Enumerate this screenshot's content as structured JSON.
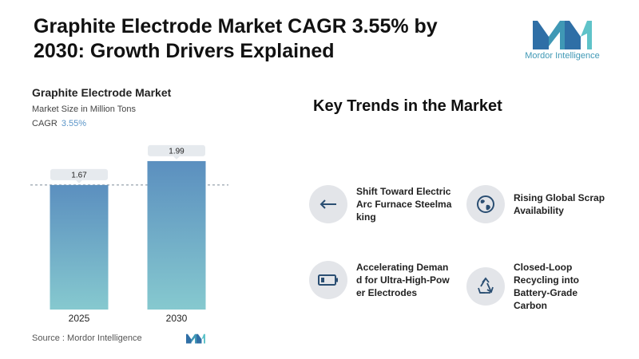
{
  "header": {
    "title": "Graphite Electrode Market CAGR 3.55% by 2030: Growth Drivers Explained"
  },
  "brand": {
    "name": "Mordor Intelligence",
    "color": "#3f98b5"
  },
  "chart_data": {
    "type": "bar",
    "title": "Graphite Electrode Market",
    "subtitle": "Market Size in Million Tons",
    "cagr_label": "CAGR",
    "cagr_value": "3.55%",
    "categories": [
      "2025",
      "2030"
    ],
    "values": [
      1.67,
      1.99
    ],
    "data_labels": [
      "1.67",
      "1.99"
    ],
    "ylim": [
      0,
      2.2
    ],
    "grid": false,
    "reference_line": "dashed line at 2025 value",
    "bar_gradient": [
      "#5b8fbf",
      "#86c9cf"
    ]
  },
  "source": {
    "label": "Source :",
    "text": "Mordor Intelligence"
  },
  "trends": {
    "title": "Key Trends in the Market",
    "items": [
      {
        "label": "Shift Toward Electric Arc Furnace Steelmaking",
        "icon": "arrow-left-icon"
      },
      {
        "label": "Rising Global Scrap Availability",
        "icon": "globe-icon"
      },
      {
        "label": "Accelerating Demand for Ultra-High-Power Electrodes",
        "icon": "battery-icon"
      },
      {
        "label": "Closed-Loop Recycling into Battery-Grade Carbon",
        "icon": "recycle-icon"
      }
    ]
  }
}
